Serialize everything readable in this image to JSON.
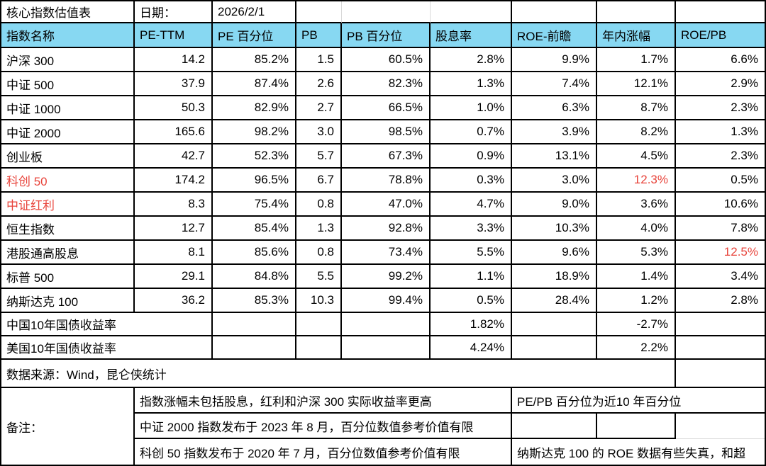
{
  "meta": {
    "title": "核心指数估值表",
    "date_label": "日期：",
    "date_value": "2026/2/1"
  },
  "colors": {
    "header_bg": "#87D8F2",
    "highlight_red": "#E8453C"
  },
  "table": {
    "headers": [
      "指数名称",
      "PE-TTM",
      "PE 百分位",
      "PB",
      "PB 百分位",
      "股息率",
      "ROE-前瞻",
      "年内涨幅",
      "ROE/PB"
    ],
    "rows": [
      {
        "name": "沪深 300",
        "red_name": false,
        "red_values": [],
        "values": [
          "14.2",
          "85.2%",
          "1.5",
          "60.5%",
          "2.8%",
          "9.9%",
          "1.7%",
          "6.6%"
        ]
      },
      {
        "name": "中证 500",
        "red_name": false,
        "red_values": [],
        "values": [
          "37.9",
          "87.4%",
          "2.6",
          "82.3%",
          "1.3%",
          "7.4%",
          "12.1%",
          "2.9%"
        ]
      },
      {
        "name": "中证 1000",
        "red_name": false,
        "red_values": [],
        "values": [
          "50.3",
          "82.9%",
          "2.7",
          "66.5%",
          "1.0%",
          "6.3%",
          "8.7%",
          "2.3%"
        ]
      },
      {
        "name": "中证 2000",
        "red_name": false,
        "red_values": [],
        "values": [
          "165.6",
          "98.2%",
          "3.0",
          "98.5%",
          "0.7%",
          "3.9%",
          "8.2%",
          "1.3%"
        ]
      },
      {
        "name": "创业板",
        "red_name": false,
        "red_values": [],
        "values": [
          "42.7",
          "52.3%",
          "5.7",
          "67.3%",
          "0.9%",
          "13.1%",
          "4.5%",
          "2.3%"
        ]
      },
      {
        "name": "科创 50",
        "red_name": true,
        "red_values": [
          6
        ],
        "values": [
          "174.2",
          "96.5%",
          "6.7",
          "78.8%",
          "0.3%",
          "3.0%",
          "12.3%",
          "0.5%"
        ]
      },
      {
        "name": "中证红利",
        "red_name": true,
        "red_values": [],
        "values": [
          "8.3",
          "75.4%",
          "0.8",
          "47.0%",
          "4.7%",
          "9.0%",
          "3.6%",
          "10.6%"
        ]
      },
      {
        "name": "恒生指数",
        "red_name": false,
        "red_values": [],
        "values": [
          "12.7",
          "85.4%",
          "1.3",
          "92.8%",
          "3.3%",
          "10.3%",
          "4.0%",
          "7.8%"
        ]
      },
      {
        "name": "港股通高股息",
        "red_name": false,
        "red_values": [
          7
        ],
        "values": [
          "8.1",
          "85.6%",
          "0.8",
          "73.4%",
          "5.5%",
          "9.6%",
          "5.3%",
          "12.5%"
        ]
      },
      {
        "name": "标普 500",
        "red_name": false,
        "red_values": [],
        "values": [
          "29.1",
          "84.8%",
          "5.5",
          "99.2%",
          "1.1%",
          "18.9%",
          "1.4%",
          "3.4%"
        ]
      },
      {
        "name": "纳斯达克 100",
        "red_name": false,
        "red_values": [],
        "values": [
          "36.2",
          "85.3%",
          "10.3",
          "99.4%",
          "0.5%",
          "28.4%",
          "1.2%",
          "2.8%"
        ]
      }
    ]
  },
  "bond_rows": [
    {
      "label": "中国10年国债收益率",
      "yield": "1.82%",
      "ytd_change": "-2.7%"
    },
    {
      "label": "美国10年国债收益率",
      "yield": "4.24%",
      "ytd_change": "2.2%"
    }
  ],
  "source_row": {
    "text": "数据来源：Wind，昆仑侠统计"
  },
  "notes": {
    "label": "备注：",
    "row1_left": "指数涨幅未包括股息，红利和沪深 300 实际收益率更高",
    "row1_right": "PE/PB 百分位为近10 年百分位",
    "row2_left": "中证 2000 指数发布于 2023 年 8 月，百分位数值参考价值有限",
    "row3_left": "科创 50 指数发布于 2020 年 7 月，百分位数值参考价值有限",
    "row3_right": "纳斯达克 100 的 ROE 数据有些失真，和超"
  }
}
